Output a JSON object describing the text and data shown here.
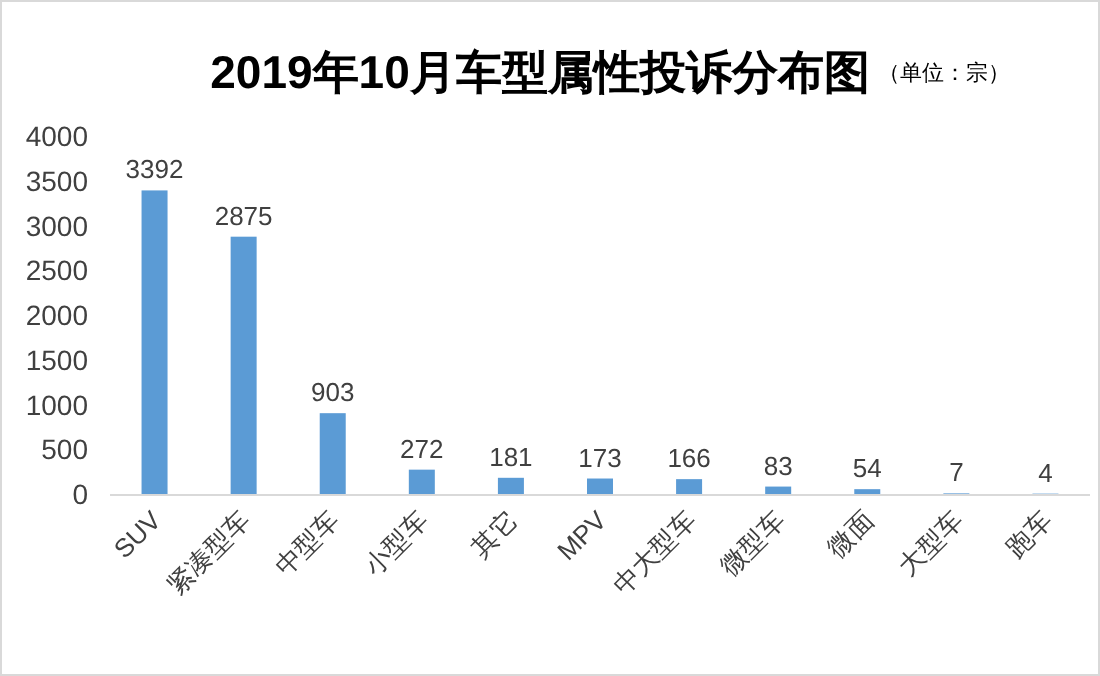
{
  "chart_data": {
    "type": "bar",
    "title": "2019年10月车型属性投诉分布图",
    "annotations": [
      "（单位：宗）"
    ],
    "categories": [
      "SUV",
      "紧凑型车",
      "中型车",
      "小型车",
      "其它",
      "MPV",
      "中大型车",
      "微型车",
      "微面",
      "大型车",
      "跑车"
    ],
    "values": [
      3392,
      2875,
      903,
      272,
      181,
      173,
      166,
      83,
      54,
      7,
      4
    ],
    "color": "#5b9bd5",
    "ylim": [
      0,
      4000
    ],
    "yticks": [
      0,
      500,
      1000,
      1500,
      2000,
      2500,
      3000,
      3500,
      4000
    ],
    "data_labels": true
  }
}
